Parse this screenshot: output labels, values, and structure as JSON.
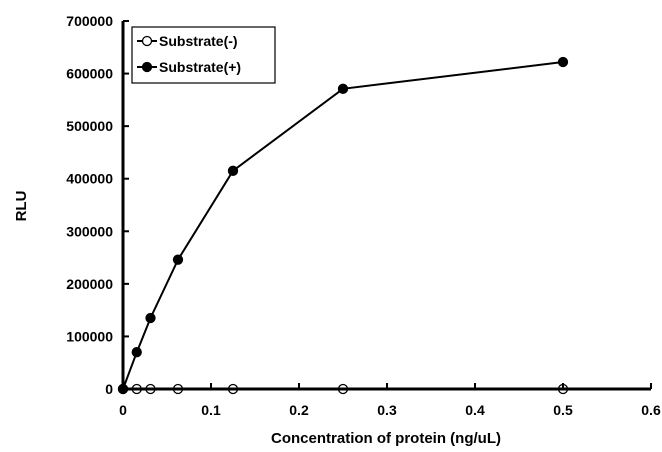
{
  "chart_data": {
    "type": "scatter",
    "xlabel": "Concentration of protein (ng/uL)",
    "ylabel": "RLU",
    "xlim": [
      0,
      0.6
    ],
    "ylim": [
      0,
      700000
    ],
    "x_ticks": [
      "0",
      "0.1",
      "0.2",
      "0.3",
      "0.4",
      "0.5",
      "0.6"
    ],
    "y_ticks": [
      "0",
      "100000",
      "200000",
      "300000",
      "400000",
      "500000",
      "600000",
      "700000"
    ],
    "grid": false,
    "legend_position": "top-left",
    "series": [
      {
        "name": "Substrate(-)",
        "marker": "open-circle",
        "color": "#000000",
        "x": [
          0,
          0.015625,
          0.03125,
          0.0625,
          0.125,
          0.25,
          0.5
        ],
        "y": [
          0,
          0,
          0,
          0,
          0,
          0,
          0
        ]
      },
      {
        "name": "Substrate(+)",
        "marker": "filled-circle",
        "color": "#000000",
        "x": [
          0,
          0.015625,
          0.03125,
          0.0625,
          0.125,
          0.25,
          0.5
        ],
        "y": [
          0,
          70000,
          135000,
          246000,
          415000,
          571000,
          622000
        ]
      }
    ]
  }
}
